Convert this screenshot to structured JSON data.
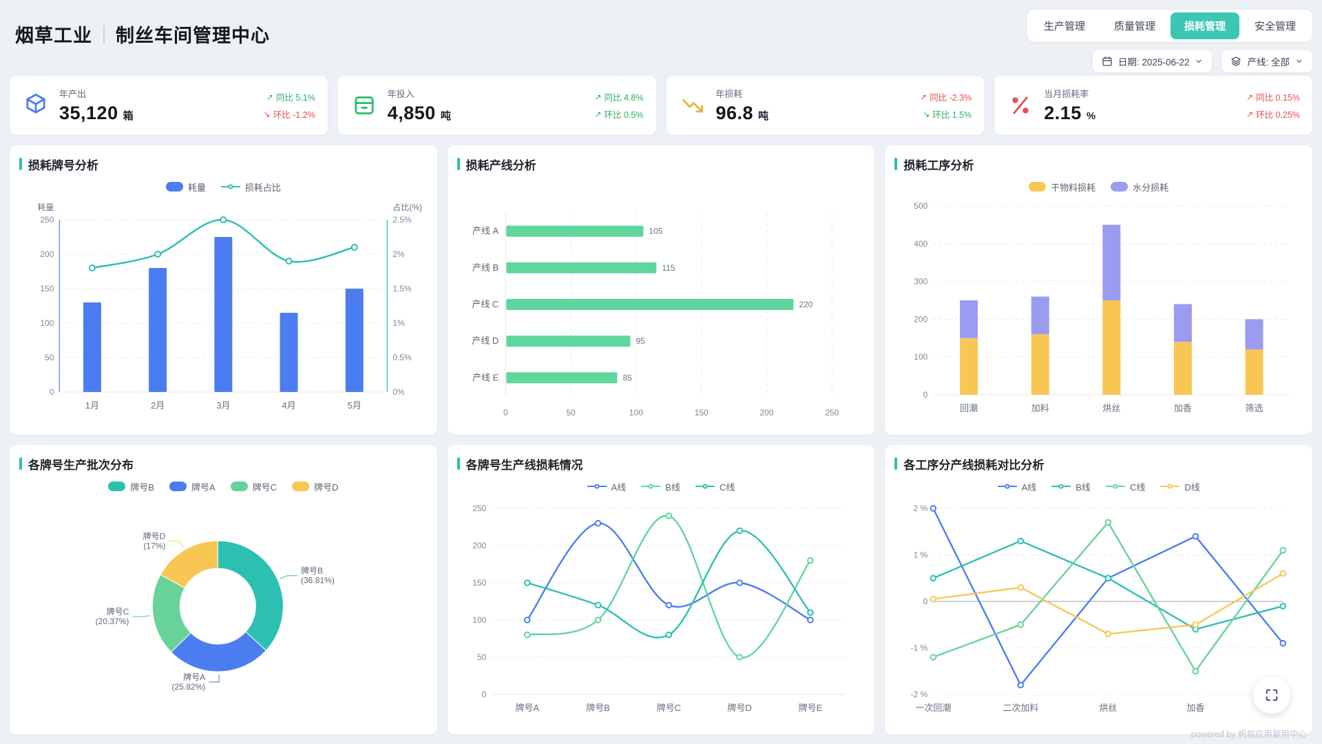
{
  "header": {
    "brand": "烟草工业",
    "title": "制丝车间管理中心",
    "tabs": [
      {
        "label": "生产管理",
        "name": "tab-production",
        "active": false
      },
      {
        "label": "质量管理",
        "name": "tab-quality",
        "active": false
      },
      {
        "label": "损耗管理",
        "name": "tab-loss",
        "active": true
      },
      {
        "label": "安全管理",
        "name": "tab-safety",
        "active": false
      }
    ],
    "active_tab_color": "#3BC7B3",
    "date_filter": "日期: 2025-06-22",
    "line_filter": "产线: 全部"
  },
  "kpis": [
    {
      "label": "年产出",
      "value": "35,120",
      "unit": "箱",
      "icon": "cube-icon",
      "accent": "#4C7DF0",
      "deltas": [
        {
          "arrow": "↗",
          "text": "同比 5.1%",
          "color": "#2BAE66"
        },
        {
          "arrow": "↘",
          "text": "环比 -1.2%",
          "color": "#E84C4C"
        }
      ]
    },
    {
      "label": "年投入",
      "value": "4,850",
      "unit": "吨",
      "icon": "bin-icon",
      "accent": "#2FBF6B",
      "deltas": [
        {
          "arrow": "↗",
          "text": "同比 4.8%",
          "color": "#2BAE66"
        },
        {
          "arrow": "↗",
          "text": "环比 0.5%",
          "color": "#2BAE66"
        }
      ]
    },
    {
      "label": "年损耗",
      "value": "96.8",
      "unit": "吨",
      "icon": "trend-down-icon",
      "accent": "#EDB23C",
      "deltas": [
        {
          "arrow": "↗",
          "text": "同比 -2.3%",
          "color": "#E84C4C"
        },
        {
          "arrow": "↘",
          "text": "环比 1.5%",
          "color": "#2BAE66"
        }
      ]
    },
    {
      "label": "当月损耗率",
      "value": "2.15",
      "unit": "%",
      "icon": "percent-icon",
      "accent": "#E9504E",
      "deltas": [
        {
          "arrow": "↗",
          "text": "同比 0.15%",
          "color": "#E84C4C"
        },
        {
          "arrow": "↗",
          "text": "环比 0.25%",
          "color": "#E84C4C"
        }
      ]
    }
  ],
  "chart_data": [
    {
      "id": "brand-loss",
      "title": "损耗牌号分析",
      "type": "bar+line",
      "categories": [
        "1月",
        "2月",
        "3月",
        "4月",
        "5月"
      ],
      "series": [
        {
          "name": "耗量",
          "type": "bar",
          "color": "#4C7DF0",
          "axis": "left",
          "values": [
            130,
            180,
            225,
            115,
            150
          ]
        },
        {
          "name": "损耗占比",
          "type": "line",
          "color": "#2CC0B2",
          "axis": "right",
          "values": [
            1.8,
            2.0,
            2.5,
            1.9,
            2.1
          ]
        }
      ],
      "left_axis": {
        "name": "耗量",
        "min": 0,
        "max": 250,
        "step": 50
      },
      "right_axis": {
        "name": "占比(%)",
        "min": 0,
        "max": 2.5,
        "step": 0.5,
        "suffix": "%"
      },
      "legend_position": "top",
      "grid": true
    },
    {
      "id": "line-loss",
      "title": "损耗产线分析",
      "type": "hbar",
      "categories": [
        "产线 A",
        "产线 B",
        "产线 C",
        "产线 D",
        "产线 E"
      ],
      "values": [
        105,
        115,
        220,
        95,
        85
      ],
      "color": "#5FD69B",
      "xlim": [
        0,
        250
      ],
      "x_step": 50,
      "value_labels": true
    },
    {
      "id": "process-loss",
      "title": "损耗工序分析",
      "type": "stacked-bar",
      "categories": [
        "回潮",
        "加料",
        "烘丝",
        "加香",
        "筛选"
      ],
      "series": [
        {
          "name": "干物料损耗",
          "color": "#F8C753",
          "values": [
            150,
            160,
            250,
            140,
            120
          ]
        },
        {
          "name": "水分损耗",
          "color": "#9B9BF2",
          "values": [
            100,
            100,
            200,
            100,
            80
          ]
        }
      ],
      "ylim": [
        0,
        500
      ],
      "y_step": 100,
      "legend_position": "top"
    },
    {
      "id": "batch-dist",
      "title": "各牌号生产批次分布",
      "type": "donut",
      "slices": [
        {
          "name": "牌号B",
          "value": 36.81,
          "pct_label": "(36.81%)",
          "color": "#2CC0B2"
        },
        {
          "name": "牌号A",
          "value": 25.82,
          "pct_label": "(25.82%)",
          "color": "#4C7DF0"
        },
        {
          "name": "牌号C",
          "value": 20.37,
          "pct_label": "(20.37%)",
          "color": "#67D39A"
        },
        {
          "name": "牌号D",
          "value": 17.0,
          "pct_label": "(17%)",
          "color": "#F8C753"
        }
      ],
      "legend_position": "top"
    },
    {
      "id": "brand-line-loss",
      "title": "各牌号生产线损耗情况",
      "type": "line",
      "categories": [
        "牌号A",
        "牌号B",
        "牌号C",
        "牌号D",
        "牌号E"
      ],
      "series": [
        {
          "name": "A线",
          "color": "#4C7DF0",
          "values": [
            100,
            230,
            120,
            150,
            100
          ]
        },
        {
          "name": "B线",
          "color": "#5FD69B",
          "values": [
            80,
            100,
            240,
            50,
            180
          ]
        },
        {
          "name": "C线",
          "color": "#2CC0B2",
          "values": [
            150,
            120,
            80,
            220,
            110
          ]
        }
      ],
      "ylim": [
        0,
        250
      ],
      "y_step": 50,
      "smooth": true,
      "boundary_gap": true,
      "legend_position": "top"
    },
    {
      "id": "process-line-compare",
      "title": "各工序分产线损耗对比分析",
      "type": "line",
      "categories": [
        "一次回潮",
        "二次加料",
        "烘丝",
        "加香",
        ""
      ],
      "series": [
        {
          "name": "A线",
          "color": "#4C7DF0",
          "values": [
            2.0,
            -1.8,
            0.5,
            1.4,
            -0.9
          ]
        },
        {
          "name": "B线",
          "color": "#2CC0B2",
          "values": [
            0.5,
            1.3,
            0.5,
            -0.6,
            -0.1
          ]
        },
        {
          "name": "C线",
          "color": "#67D39A",
          "values": [
            -1.2,
            -0.5,
            1.7,
            -1.5,
            1.1
          ]
        },
        {
          "name": "D线",
          "color": "#F8C753",
          "values": [
            0.05,
            0.3,
            -0.7,
            -0.5,
            0.6
          ]
        }
      ],
      "ylim": [
        -2,
        2
      ],
      "y_step": 1,
      "suffix": " %",
      "smooth": false,
      "boundary_gap": false,
      "zero_line": true,
      "legend_position": "top"
    }
  ],
  "footer": {
    "powered_by": "powered by 帆软应用复用中心"
  }
}
